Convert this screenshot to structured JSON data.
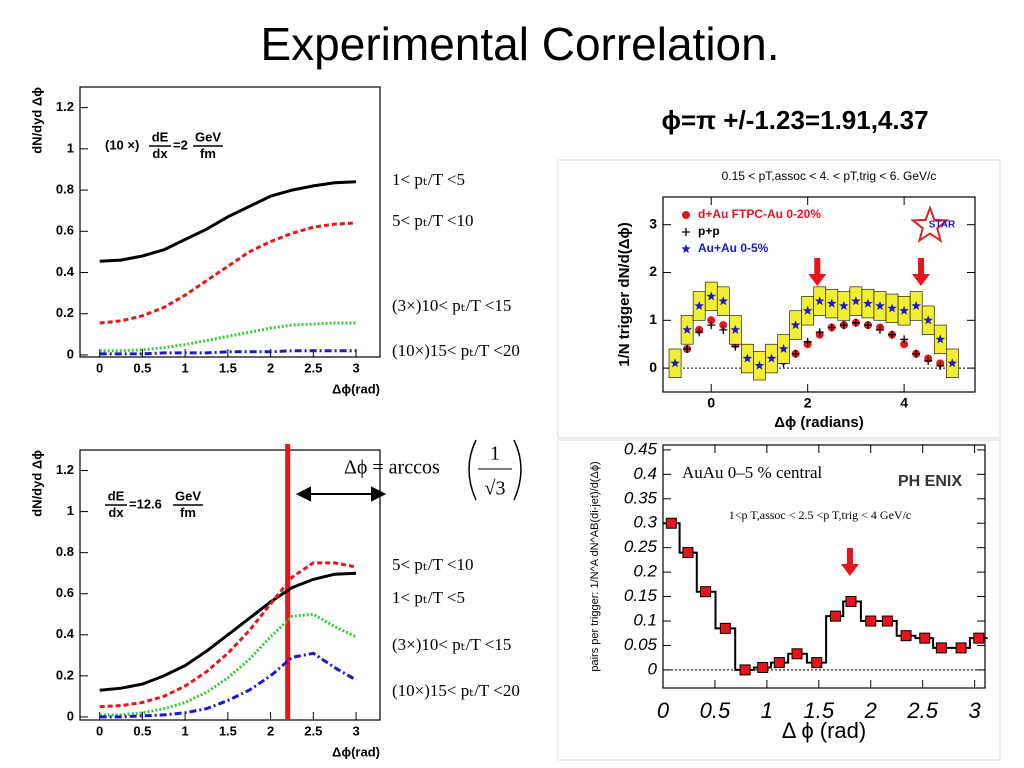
{
  "title": "Experimental Correlation.",
  "annotation": "ϕ=π +/-1.23=1.91,4.37",
  "chart_data": [
    {
      "type": "line",
      "ylabel": "dN/dyd Δϕ",
      "xlabel": "Δϕ(rad)",
      "formula": {
        "prefix": "(10 ×)",
        "num1": "dE",
        "den1": "dx",
        "mid": "=2",
        "num2": "GeV",
        "den2": "fm"
      },
      "xlim": [
        -0.23,
        3.28
      ],
      "xticks": [
        0,
        0.5,
        1,
        1.5,
        2,
        2.5,
        3
      ],
      "ylim": [
        -0.01,
        1.3
      ],
      "yticks": [
        0,
        0.2,
        0.4,
        0.6,
        0.8,
        1,
        1.2
      ],
      "x": [
        0,
        0.25,
        0.5,
        0.75,
        1,
        1.25,
        1.5,
        1.75,
        2,
        2.25,
        2.5,
        2.75,
        3
      ],
      "series": [
        {
          "name": "1< pₜ/T <5",
          "color": "#000000",
          "dash": "solid",
          "values": [
            0.455,
            0.46,
            0.48,
            0.51,
            0.56,
            0.61,
            0.67,
            0.72,
            0.77,
            0.8,
            0.82,
            0.835,
            0.84
          ]
        },
        {
          "name": "5< pₜ/T <10",
          "color": "#e8141c",
          "dash": "dashed",
          "values": [
            0.155,
            0.165,
            0.19,
            0.23,
            0.29,
            0.36,
            0.43,
            0.5,
            0.55,
            0.59,
            0.62,
            0.635,
            0.64
          ]
        },
        {
          "name": "(3×)10< pₜ/T <15",
          "color": "#33cc33",
          "dash": "dotted",
          "values": [
            0.02,
            0.02,
            0.025,
            0.035,
            0.05,
            0.07,
            0.09,
            0.11,
            0.13,
            0.145,
            0.15,
            0.155,
            0.155
          ]
        },
        {
          "name": "(10×)15< pₜ/T <20",
          "color": "#1a1acc",
          "dash": "dashdot",
          "values": [
            0.005,
            0.005,
            0.005,
            0.01,
            0.01,
            0.01,
            0.015,
            0.015,
            0.015,
            0.02,
            0.02,
            0.02,
            0.02
          ]
        }
      ]
    },
    {
      "type": "line",
      "ylabel": "dN/dyd Δϕ",
      "xlabel": "Δϕ(rad)",
      "formula": {
        "prefix": "",
        "num1": "dE",
        "den1": "dx",
        "mid": "=12.6",
        "num2": "GeV",
        "den2": "fm"
      },
      "equation": {
        "lhs": "Δϕ = arccos",
        "num": "1",
        "den": "√3"
      },
      "vline": 2.2,
      "vline_color": "#e8141c",
      "xlim": [
        -0.23,
        3.28
      ],
      "xticks": [
        0,
        0.5,
        1,
        1.5,
        2,
        2.5,
        3
      ],
      "ylim": [
        -0.015,
        1.3
      ],
      "yticks": [
        0,
        0.2,
        0.4,
        0.6,
        0.8,
        1,
        1.2
      ],
      "x": [
        0,
        0.25,
        0.5,
        0.75,
        1,
        1.25,
        1.5,
        1.75,
        2,
        2.25,
        2.5,
        2.75,
        3
      ],
      "series": [
        {
          "name": "1< pₜ/T <5",
          "color": "#000000",
          "dash": "solid",
          "values": [
            0.13,
            0.14,
            0.16,
            0.2,
            0.25,
            0.32,
            0.4,
            0.48,
            0.56,
            0.63,
            0.67,
            0.695,
            0.7
          ]
        },
        {
          "name": "5< pₜ/T <10",
          "color": "#e8141c",
          "dash": "dashed",
          "values": [
            0.05,
            0.055,
            0.07,
            0.1,
            0.15,
            0.22,
            0.31,
            0.42,
            0.55,
            0.68,
            0.75,
            0.75,
            0.73
          ]
        },
        {
          "name": "(3×)10< pₜ/T <15",
          "color": "#33cc33",
          "dash": "dotted",
          "values": [
            0.01,
            0.01,
            0.02,
            0.04,
            0.07,
            0.12,
            0.19,
            0.28,
            0.39,
            0.49,
            0.5,
            0.44,
            0.39
          ]
        },
        {
          "name": "(10×)15< pₜ/T <20",
          "color": "#1a1acc",
          "dash": "dashdot",
          "values": [
            0,
            0,
            0.005,
            0.01,
            0.02,
            0.04,
            0.08,
            0.13,
            0.2,
            0.29,
            0.31,
            0.24,
            0.18
          ]
        }
      ]
    },
    {
      "type": "scatter",
      "title": "0.15 < pT,assoc < 4. < pT,trig < 6. GeV/c",
      "logo": "STAR",
      "ylabel": "1/N trigger dN/d(Δϕ)",
      "xlabel": "Δϕ (radians)",
      "xlim": [
        -1,
        5.47
      ],
      "xticks": [
        0,
        2,
        4
      ],
      "ylim": [
        -0.5,
        3.58
      ],
      "yticks": [
        0,
        1,
        2,
        3
      ],
      "arrows": [
        2.2,
        4.35
      ],
      "arrow_color": "#e8141c",
      "x": [
        -0.75,
        -0.5,
        -0.25,
        0,
        0.25,
        0.5,
        0.75,
        1,
        1.25,
        1.5,
        1.75,
        2,
        2.25,
        2.5,
        2.75,
        3,
        3.25,
        3.5,
        3.75,
        4,
        4.25,
        4.5,
        4.75,
        5
      ],
      "series": [
        {
          "name": "d+Au FTPC-Au 0-20%",
          "color": "#e8141c",
          "marker": "circle",
          "values": [
            0.05,
            0.4,
            0.8,
            1.0,
            0.9,
            0.5,
            0.05,
            -0.05,
            0.05,
            0.15,
            0.3,
            0.5,
            0.7,
            0.85,
            0.9,
            0.95,
            0.9,
            0.85,
            0.7,
            0.5,
            0.3,
            0.2,
            0.1,
            0.05
          ]
        },
        {
          "name": "p+p",
          "color": "#000000",
          "marker": "cross",
          "values": [
            0,
            0.4,
            0.75,
            0.9,
            0.8,
            0.45,
            0.05,
            -0.05,
            0,
            0.1,
            0.3,
            0.55,
            0.75,
            0.85,
            0.9,
            0.95,
            0.9,
            0.8,
            0.7,
            0.6,
            0.3,
            0.15,
            0.05,
            0
          ]
        },
        {
          "name": "Au+Au 0-5%",
          "color": "#1a1acc",
          "marker": "star",
          "band": "#f2ee33",
          "values": [
            0.1,
            0.8,
            1.3,
            1.5,
            1.4,
            0.8,
            0.2,
            0.05,
            0.2,
            0.4,
            0.9,
            1.2,
            1.4,
            1.35,
            1.3,
            1.4,
            1.35,
            1.3,
            1.25,
            1.2,
            1.3,
            1.0,
            0.6,
            0.1
          ]
        }
      ]
    },
    {
      "type": "scatter",
      "logo": "PH ENIX",
      "annotation": "AuAu 0–5 % central",
      "subtitle": "1<p T,assoc < 2.5 <p T,trig < 4 GeV/c",
      "ylabel": "pairs per trigger: 1/N^A dN^AB(di-jet)/d(Δϕ)",
      "xlabel": "Δ ϕ (rad)",
      "xlim": [
        0,
        3.1
      ],
      "xticks": [
        0,
        0.5,
        1,
        1.5,
        2,
        2.5,
        3
      ],
      "ylim": [
        -0.037,
        0.46
      ],
      "yticks": [
        0,
        0.05,
        0.1,
        0.15,
        0.2,
        0.25,
        0.3,
        0.35,
        0.4,
        0.45
      ],
      "arrows": [
        1.8
      ],
      "arrow_color": "#e8141c",
      "step": true,
      "x": [
        0.08,
        0.24,
        0.41,
        0.6,
        0.79,
        0.96,
        1.12,
        1.29,
        1.48,
        1.66,
        1.81,
        2.0,
        2.16,
        2.34,
        2.52,
        2.68,
        2.87,
        3.04
      ],
      "series": [
        {
          "name": "AuAu",
          "color": "#e8141c",
          "marker": "square",
          "values": [
            0.3,
            0.24,
            0.16,
            0.085,
            0,
            0.005,
            0.015,
            0.033,
            0.015,
            0.11,
            0.14,
            0.1,
            0.1,
            0.07,
            0.065,
            0.045,
            0.045,
            0.065
          ]
        }
      ]
    }
  ]
}
